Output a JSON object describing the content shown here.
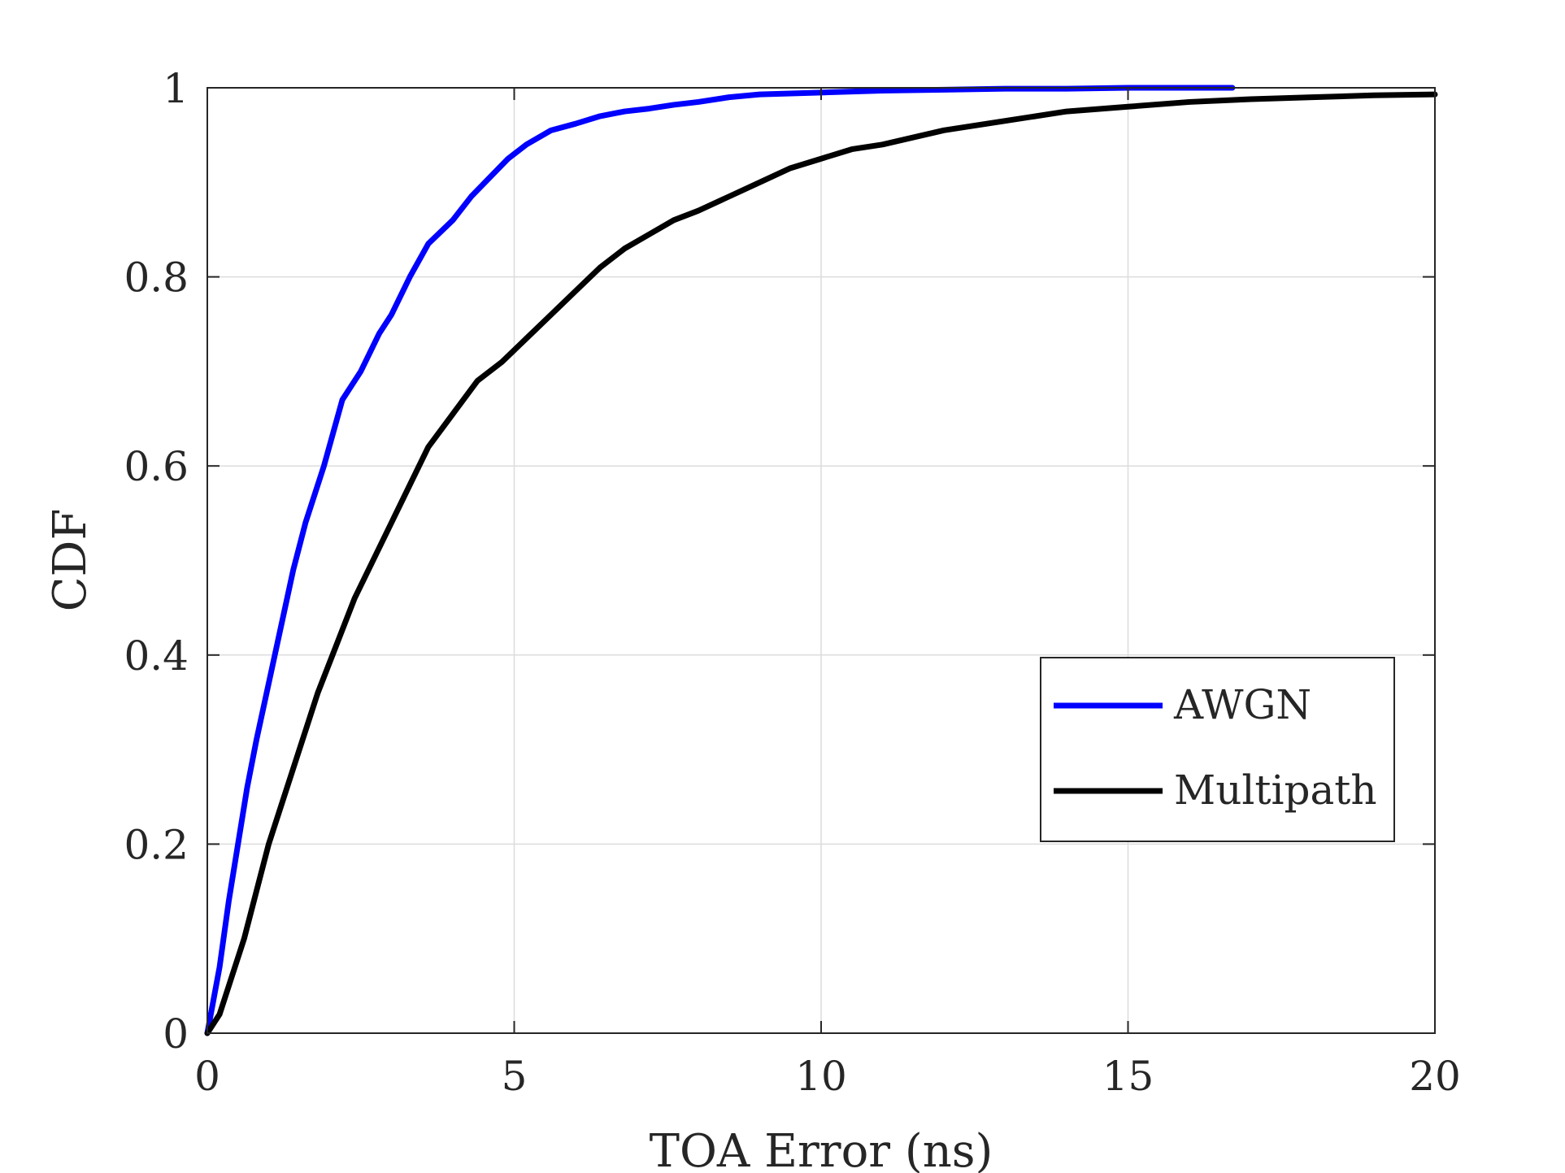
{
  "chart_data": {
    "type": "line",
    "title": "",
    "xlabel": "TOA Error (ns)",
    "ylabel": "CDF",
    "xlim": [
      0,
      20
    ],
    "ylim": [
      0,
      1
    ],
    "xticks": [
      0,
      5,
      10,
      15,
      20
    ],
    "yticks": [
      0,
      0.2,
      0.4,
      0.6,
      0.8,
      1
    ],
    "xtick_labels": [
      "0",
      "5",
      "10",
      "15",
      "20"
    ],
    "ytick_labels": [
      "0",
      "0.2",
      "0.4",
      "0.6",
      "0.8",
      "1"
    ],
    "grid": true,
    "legend_position": "right",
    "series": [
      {
        "name": "AWGN",
        "color": "#0000ff",
        "x": [
          0,
          0.2,
          0.35,
          0.5,
          0.65,
          0.8,
          1.0,
          1.2,
          1.4,
          1.6,
          1.9,
          2.2,
          2.5,
          2.8,
          3.0,
          3.3,
          3.6,
          4.0,
          4.3,
          4.6,
          4.9,
          5.2,
          5.6,
          6.0,
          6.4,
          6.8,
          7.2,
          7.6,
          8.0,
          8.5,
          9.0,
          10.0,
          11.0,
          12.0,
          13.0,
          14.0,
          15.0,
          16.0,
          16.7
        ],
        "y": [
          0,
          0.07,
          0.14,
          0.2,
          0.26,
          0.31,
          0.37,
          0.43,
          0.49,
          0.54,
          0.6,
          0.67,
          0.7,
          0.74,
          0.76,
          0.8,
          0.835,
          0.86,
          0.885,
          0.905,
          0.925,
          0.94,
          0.955,
          0.962,
          0.97,
          0.975,
          0.978,
          0.982,
          0.985,
          0.99,
          0.993,
          0.995,
          0.997,
          0.998,
          0.999,
          0.999,
          1.0,
          1.0,
          1.0
        ]
      },
      {
        "name": "Multipath",
        "color": "#000000",
        "x": [
          0,
          0.2,
          0.4,
          0.6,
          0.8,
          1.0,
          1.2,
          1.5,
          1.8,
          2.1,
          2.4,
          2.7,
          3.0,
          3.3,
          3.6,
          4.0,
          4.4,
          4.8,
          5.2,
          5.6,
          6.0,
          6.4,
          6.8,
          7.2,
          7.6,
          8.0,
          8.5,
          9.0,
          9.5,
          10.0,
          10.5,
          11.0,
          12.0,
          13.0,
          14.0,
          15.0,
          16.0,
          17.0,
          18.0,
          19.0,
          20.0
        ],
        "y": [
          0,
          0.02,
          0.06,
          0.1,
          0.15,
          0.2,
          0.24,
          0.3,
          0.36,
          0.41,
          0.46,
          0.5,
          0.54,
          0.58,
          0.62,
          0.655,
          0.69,
          0.71,
          0.735,
          0.76,
          0.785,
          0.81,
          0.83,
          0.845,
          0.86,
          0.87,
          0.885,
          0.9,
          0.915,
          0.925,
          0.935,
          0.94,
          0.955,
          0.965,
          0.975,
          0.98,
          0.985,
          0.988,
          0.99,
          0.992,
          0.993
        ]
      }
    ]
  }
}
